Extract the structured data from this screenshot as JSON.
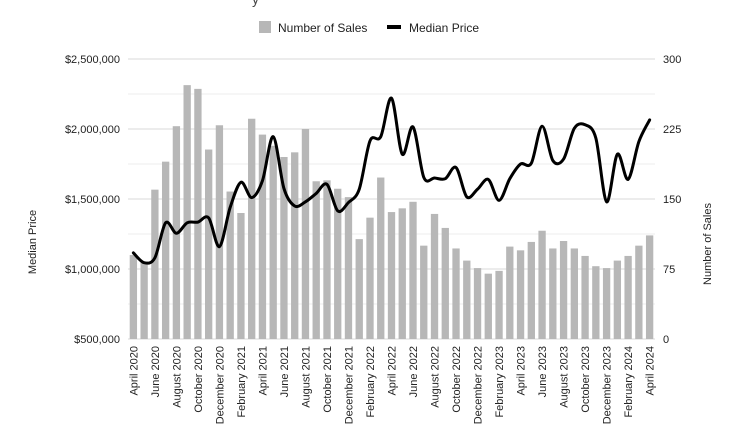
{
  "chart_data": {
    "type": "bar+line",
    "title_fragment": "y",
    "categories": [
      "April 2020",
      "May 2020",
      "June 2020",
      "July 2020",
      "August 2020",
      "September 2020",
      "October 2020",
      "November 2020",
      "December 2020",
      "January 2021",
      "February 2021",
      "March 2021",
      "April 2021",
      "May 2021",
      "June 2021",
      "July 2021",
      "August 2021",
      "September 2021",
      "October 2021",
      "November 2021",
      "December 2021",
      "January 2022",
      "February 2022",
      "March 2022",
      "April 2022",
      "May 2022",
      "June 2022",
      "July 2022",
      "August 2022",
      "September 2022",
      "October 2022",
      "November 2022",
      "December 2022",
      "January 2023",
      "February 2023",
      "March 2023",
      "April 2023",
      "May 2023",
      "June 2023",
      "July 2023",
      "August 2023",
      "September 2023",
      "October 2023",
      "November 2023",
      "December 2023",
      "January 2024",
      "February 2024",
      "March 2024",
      "April 2024"
    ],
    "x_tick_labels": [
      "April 2020",
      "June 2020",
      "August 2020",
      "October 2020",
      "December 2020",
      "February 2021",
      "April 2021",
      "June 2021",
      "August 2021",
      "October 2021",
      "December 2021",
      "February 2022",
      "April 2022",
      "June 2022",
      "August 2022",
      "October 2022",
      "December 2022",
      "February 2023",
      "April 2023",
      "June 2023",
      "August 2023",
      "October 2023",
      "December 2023",
      "February 2024",
      "April 2024"
    ],
    "left_axis": {
      "label": "Median Price",
      "min": 500000,
      "max": 2500000,
      "ticks": [
        "$500,000",
        "$1,000,000",
        "$1,500,000",
        "$2,000,000",
        "$2,500,000"
      ]
    },
    "right_axis": {
      "label": "Number of Sales",
      "min": 0,
      "max": 300,
      "ticks": [
        "0",
        "75",
        "150",
        "225",
        "300"
      ]
    },
    "legend": {
      "position": "top",
      "sales_label": "Number of Sales",
      "price_label": "Median Price"
    },
    "grid": true,
    "series": [
      {
        "name": "Number of Sales",
        "type": "bar",
        "axis": "right",
        "color": "#b7b7b7",
        "values": [
          90,
          83,
          160,
          190,
          228,
          272,
          268,
          203,
          229,
          158,
          135,
          236,
          219,
          207,
          195,
          200,
          225,
          169,
          170,
          161,
          152,
          107,
          130,
          173,
          136,
          140,
          147,
          100,
          134,
          119,
          97,
          84,
          76,
          70,
          73,
          99,
          95,
          104,
          116,
          97,
          105,
          97,
          89,
          78,
          76,
          84,
          89,
          100,
          111
        ]
      },
      {
        "name": "Median Price",
        "type": "line",
        "axis": "left",
        "color": "#000000",
        "values": [
          1115000,
          1045000,
          1080000,
          1330000,
          1255000,
          1330000,
          1335000,
          1365000,
          1160000,
          1440000,
          1620000,
          1510000,
          1630000,
          1945000,
          1575000,
          1450000,
          1480000,
          1540000,
          1605000,
          1415000,
          1475000,
          1570000,
          1915000,
          1945000,
          2220000,
          1820000,
          2015000,
          1655000,
          1650000,
          1645000,
          1725000,
          1515000,
          1570000,
          1640000,
          1490000,
          1645000,
          1750000,
          1755000,
          2020000,
          1775000,
          1785000,
          2005000,
          2030000,
          1935000,
          1480000,
          1820000,
          1640000,
          1910000,
          2065000
        ]
      }
    ]
  }
}
